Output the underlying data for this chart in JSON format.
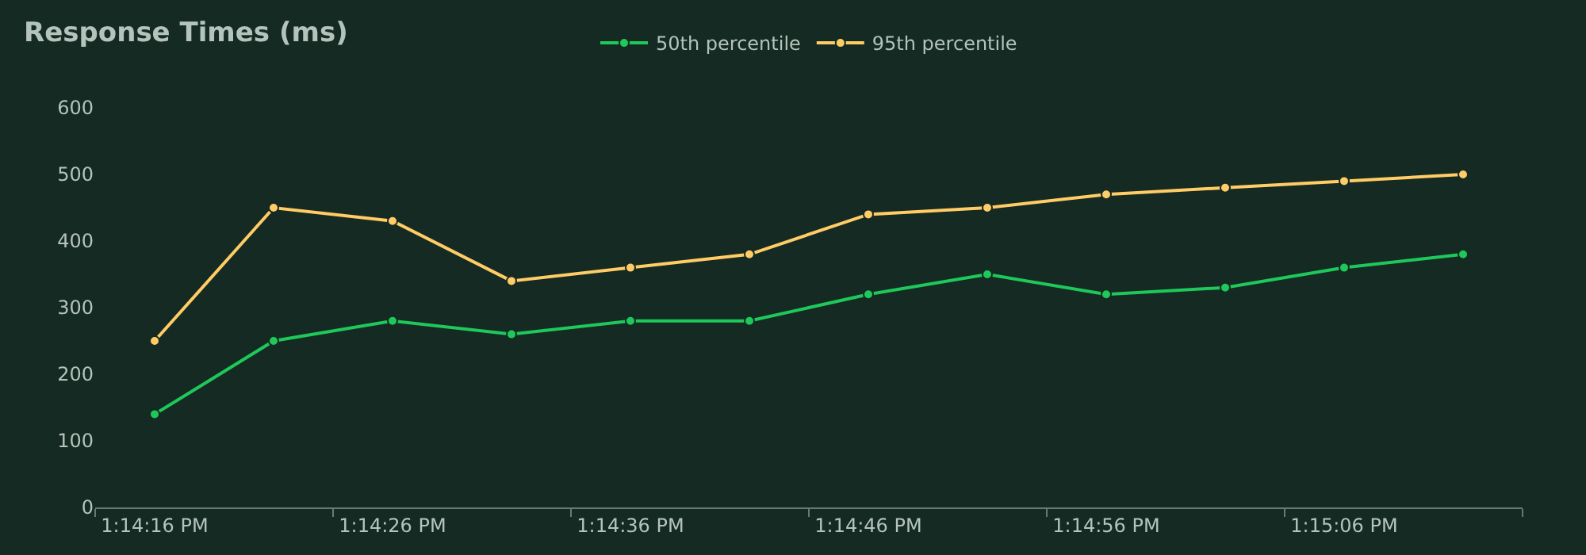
{
  "chart_data": {
    "type": "line",
    "title": "Response Times (ms)",
    "categories": [
      "1:14:16 PM",
      null,
      "1:14:26 PM",
      null,
      "1:14:36 PM",
      null,
      "1:14:46 PM",
      null,
      "1:14:56 PM",
      null,
      "1:15:06 PM",
      null
    ],
    "series": [
      {
        "name": "50th percentile",
        "color": "#1ec85a",
        "values": [
          140,
          250,
          280,
          260,
          280,
          280,
          320,
          350,
          320,
          330,
          360,
          380
        ]
      },
      {
        "name": "95th percentile",
        "color": "#ffcc66",
        "values": [
          250,
          450,
          430,
          340,
          360,
          380,
          440,
          450,
          470,
          480,
          490,
          500
        ]
      }
    ],
    "ylim": [
      0,
      600
    ],
    "yticks": [
      0,
      100,
      200,
      300,
      400,
      500,
      600
    ],
    "grid": false,
    "legend": "top",
    "marker": "circle",
    "line_style": "solid"
  }
}
